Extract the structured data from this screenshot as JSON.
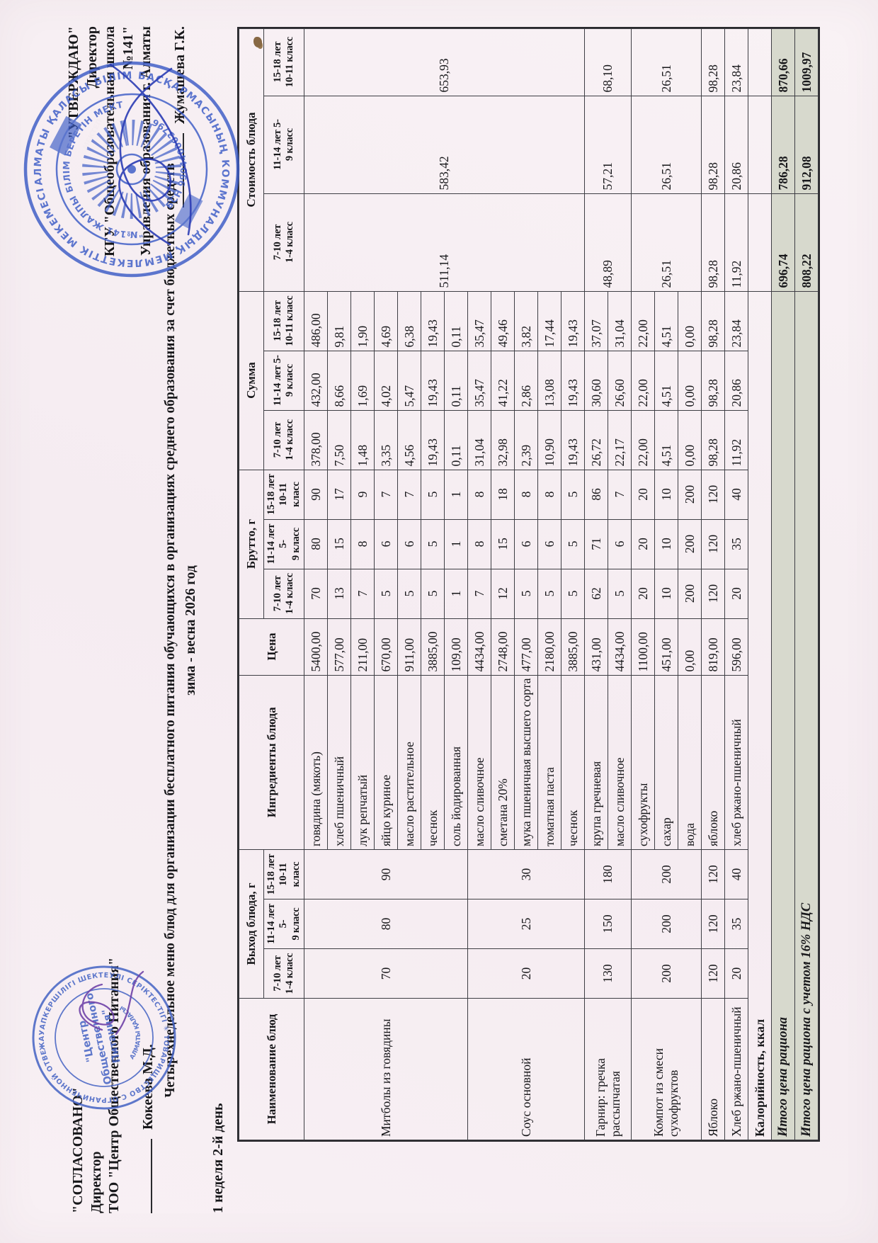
{
  "approval_left": {
    "approved_label": "\"СОГЛАСОВАНО\"",
    "line1": "Директор",
    "line2": "ТОО \"Центр Общественного Питания\"",
    "signer": "Кокеева М.Д."
  },
  "approval_right": {
    "approved_label": "\"УТВЕРЖДАЮ\"",
    "line1": "Директор",
    "line2": "КГУ \"Общеобразовательная школа №141\"",
    "line3": "Управления образования г. Алматы",
    "signer": "Жумашева Г.К."
  },
  "title_line1": "Четырехнедельное меню блюд для организации бесплатного питания обучающихся в организациях среднего образования за счет бюджетных средств",
  "title_line2": "зима - весна 2026 год",
  "week_day_label": "1 неделя 2-й день",
  "stamps": {
    "school": {
      "ring_outer": "АЛМАТЫ ҚАЛАСЫ БІЛІМ БАСҚАРМАСЫНЫҢ КОММУНАЛДЫҚ МЕМЛЕКЕТТІК МЕКЕМЕСІ ✦",
      "ring_inner_top": "\"№141 ЖАЛПЫ БІЛІМ БЕРЕТІН МЕКТЕБІ\"",
      "ring_inner_bottom": "БСН 990440003796",
      "banner": "МЕКТЕП"
    },
    "too": {
      "ring_outer": "ЖАУАПКЕРШІЛІГІ ШЕКТЕУЛІ СЕРІКТЕСТІГІ ✳ ТОВАРИЩЕСТВО С ОГРАНИЧЕННОЙ ОТВЕТСТВЕННОСТЬЮ ✳",
      "center1": "\"Центр",
      "center2": "Общественного",
      "center3": "Питания\"",
      "ring_inner_bottom": "АЛМАТЫ ҚАЛАСЫ"
    }
  },
  "table": {
    "col_groups": [
      "Наименование блюд",
      "Выход блюда, г",
      "Ингредиенты блюда",
      "Цена",
      "Брутто, г",
      "Сумма",
      "Стоимость блюда"
    ],
    "age_cols": [
      "7-10 лет\n1-4 класс",
      "11-14 лет 5-\n9 класс",
      "15-18 лет\n10-11 класс"
    ],
    "dishes": [
      {
        "name": "Митболы из говядины",
        "vyhod": [
          "70",
          "80",
          "90"
        ],
        "cost": [
          "511,14",
          "583,42",
          "653,93"
        ],
        "cost_rowspan": 12,
        "rows": [
          {
            "ingredient": "говядина (мякоть)",
            "price": "5400,00",
            "brutto": [
              "70",
              "80",
              "90"
            ],
            "summa": [
              "378,00",
              "432,00",
              "486,00"
            ]
          },
          {
            "ingredient": "хлеб пшеничный",
            "price": "577,00",
            "brutto": [
              "13",
              "15",
              "17"
            ],
            "summa": [
              "7,50",
              "8,66",
              "9,81"
            ]
          },
          {
            "ingredient": "лук репчатый",
            "price": "211,00",
            "brutto": [
              "7",
              "8",
              "9"
            ],
            "summa": [
              "1,48",
              "1,69",
              "1,90"
            ]
          },
          {
            "ingredient": "яйцо куриное",
            "price": "670,00",
            "brutto": [
              "5",
              "6",
              "7"
            ],
            "summa": [
              "3,35",
              "4,02",
              "4,69"
            ]
          },
          {
            "ingredient": "масло растительное",
            "price": "911,00",
            "brutto": [
              "5",
              "6",
              "7"
            ],
            "summa": [
              "4,56",
              "5,47",
              "6,38"
            ]
          },
          {
            "ingredient": "чеснок",
            "price": "3885,00",
            "brutto": [
              "5",
              "5",
              "5"
            ],
            "summa": [
              "19,43",
              "19,43",
              "19,43"
            ]
          },
          {
            "ingredient": "соль йодированная",
            "price": "109,00",
            "brutto": [
              "1",
              "1",
              "1"
            ],
            "summa": [
              "0,11",
              "0,11",
              "0,11"
            ]
          }
        ]
      },
      {
        "name": "Соус основной",
        "vyhod": [
          "20",
          "25",
          "30"
        ],
        "cost": null,
        "rows": [
          {
            "ingredient": "масло сливочное",
            "price": "4434,00",
            "brutto": [
              "7",
              "8",
              "8"
            ],
            "summa": [
              "31,04",
              "35,47",
              "35,47"
            ]
          },
          {
            "ingredient": "сметана 20%",
            "price": "2748,00",
            "brutto": [
              "12",
              "15",
              "18"
            ],
            "summa": [
              "32,98",
              "41,22",
              "49,46"
            ]
          },
          {
            "ingredient": "мука пшеничная высшего сорта",
            "price": "477,00",
            "brutto": [
              "5",
              "6",
              "8"
            ],
            "summa": [
              "2,39",
              "2,86",
              "3,82"
            ]
          },
          {
            "ingredient": "томатная паста",
            "price": "2180,00",
            "brutto": [
              "5",
              "6",
              "8"
            ],
            "summa": [
              "10,90",
              "13,08",
              "17,44"
            ]
          },
          {
            "ingredient": "чеснок",
            "price": "3885,00",
            "brutto": [
              "5",
              "5",
              "5"
            ],
            "summa": [
              "19,43",
              "19,43",
              "19,43"
            ]
          }
        ]
      },
      {
        "name": "Гарнир: гречка рассыпчатая",
        "vyhod": [
          "130",
          "150",
          "180"
        ],
        "cost": [
          "48,89",
          "57,21",
          "68,10"
        ],
        "cost_rowspan": 2,
        "rows": [
          {
            "ingredient": "крупа гречневая",
            "price": "431,00",
            "brutto": [
              "62",
              "71",
              "86"
            ],
            "summa": [
              "26,72",
              "30,60",
              "37,07"
            ]
          },
          {
            "ingredient": "масло сливочное",
            "price": "4434,00",
            "brutto": [
              "5",
              "6",
              "7"
            ],
            "summa": [
              "22,17",
              "26,60",
              "31,04"
            ]
          }
        ]
      },
      {
        "name": "Компот из смеси сухофруктов",
        "vyhod": [
          "200",
          "200",
          "200"
        ],
        "cost": [
          "26,51",
          "26,51",
          "26,51"
        ],
        "cost_rowspan": 3,
        "rows": [
          {
            "ingredient": "сухофрукты",
            "price": "1100,00",
            "brutto": [
              "20",
              "20",
              "20"
            ],
            "summa": [
              "22,00",
              "22,00",
              "22,00"
            ]
          },
          {
            "ingredient": "сахар",
            "price": "451,00",
            "brutto": [
              "10",
              "10",
              "10"
            ],
            "summa": [
              "4,51",
              "4,51",
              "4,51"
            ]
          },
          {
            "ingredient": "вода",
            "price": "0,00",
            "brutto": [
              "200",
              "200",
              "200"
            ],
            "summa": [
              "0,00",
              "0,00",
              "0,00"
            ]
          }
        ]
      },
      {
        "name": "Яблоко",
        "vyhod": [
          "120",
          "120",
          "120"
        ],
        "cost": [
          "98,28",
          "98,28",
          "98,28"
        ],
        "cost_rowspan": 1,
        "rows": [
          {
            "ingredient": "яблоко",
            "price": "819,00",
            "brutto": [
              "120",
              "120",
              "120"
            ],
            "summa": [
              "98,28",
              "98,28",
              "98,28"
            ]
          }
        ]
      },
      {
        "name": "Хлеб ржано-пшеничный",
        "vyhod": [
          "20",
          "35",
          "40"
        ],
        "cost": [
          "11,92",
          "20,86",
          "23,84"
        ],
        "cost_rowspan": 1,
        "rows": [
          {
            "ingredient": "хлеб ржано-пшеничный",
            "price": "596,00",
            "brutto": [
              "20",
              "35",
              "40"
            ],
            "summa": [
              "11,92",
              "20,86",
              "23,84"
            ]
          }
        ]
      }
    ],
    "footer": [
      {
        "label": "Калорийность, ккал",
        "shaded": false,
        "values": [
          "",
          "",
          ""
        ]
      },
      {
        "label": "Итого цена рациона",
        "shaded": true,
        "values": [
          "696,74",
          "786,28",
          "870,66"
        ]
      },
      {
        "label": "Итого цена рациона с учетом 16% НДС",
        "shaded": true,
        "values": [
          "808,22",
          "912,08",
          "1009,97"
        ]
      }
    ]
  }
}
